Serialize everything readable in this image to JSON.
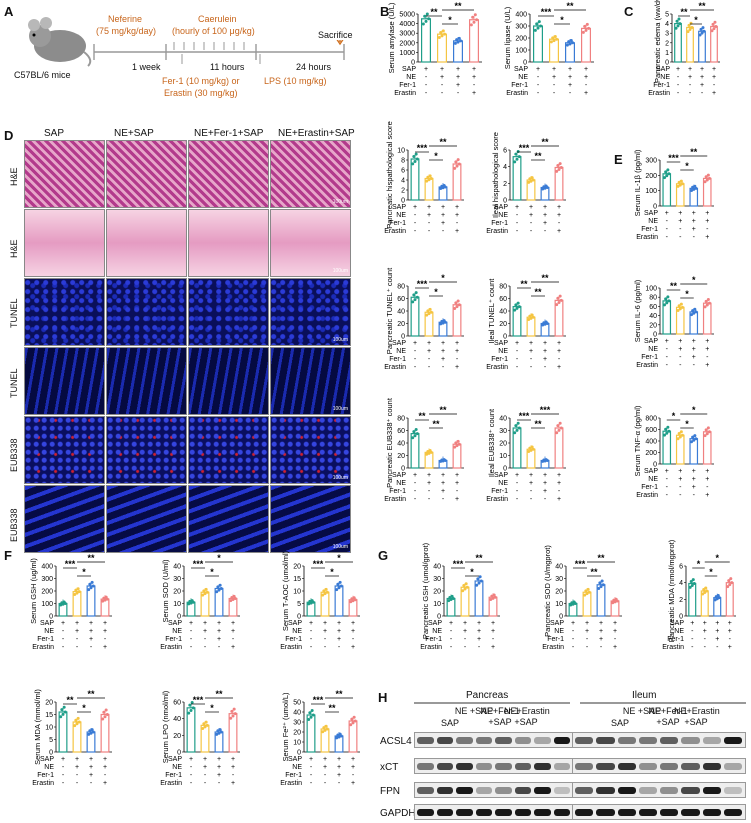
{
  "panels": {
    "A": {
      "letter": "A",
      "mouse_label": "C57BL/6 mice",
      "step1_top": "Neferine",
      "step1_dose": "(75 mg/kg/day)",
      "step1_dur": "1 week",
      "step2_top": "Caerulein",
      "step2_dose": "(hourly of 100 μg/kg)",
      "step2_dur": "11 hours",
      "step2_bot1": "Fer-1 (10 mg/kg) or",
      "step2_bot2": "Erastin (30 mg/kg)",
      "step3_dur": "24 hours",
      "step3_bot": "LPS (10 mg/kg)",
      "sacrifice": "Sacrifice"
    },
    "B": {
      "letter": "B"
    },
    "C": {
      "letter": "C"
    },
    "D": {
      "letter": "D"
    },
    "E": {
      "letter": "E"
    },
    "F": {
      "letter": "F"
    },
    "G": {
      "letter": "G"
    },
    "H": {
      "letter": "H"
    }
  },
  "design_rows": [
    "SAP",
    "NE",
    "Fer-1",
    "Erastin"
  ],
  "design_signs": [
    [
      "+",
      "+",
      "+",
      "+"
    ],
    [
      "-",
      "+",
      "+",
      "+"
    ],
    [
      "-",
      "-",
      "+",
      "-"
    ],
    [
      "-",
      "-",
      "-",
      "+"
    ]
  ],
  "group_colors": [
    "#1f9e89",
    "#f5c542",
    "#3a7bd5",
    "#f08080"
  ],
  "micro_columns": [
    "SAP",
    "NE+SAP",
    "NE+Fer-1+SAP",
    "NE+Erastin+SAP"
  ],
  "micro_rows": [
    "H&E",
    "H&E",
    "TUNEL",
    "TUNEL",
    "EUB338",
    "EUB338"
  ],
  "scale_bar": "100um",
  "blot": {
    "tissues": [
      "Pancreas",
      "Ileum"
    ],
    "groups": [
      "SAP",
      "NE +SAP",
      "NE+Fer-1 +SAP",
      "NE+Erastin +SAP"
    ],
    "proteins": [
      "ACSL4",
      "xCT",
      "FPN",
      "GAPDH"
    ]
  },
  "chart_data": [
    {
      "id": "B1",
      "type": "bar",
      "ylabel": "Serum amylase (U/L)",
      "ylim": [
        0,
        5000
      ],
      "ticks": [
        0,
        1000,
        2000,
        3000,
        4000,
        5000
      ],
      "values": [
        4500,
        2900,
        2200,
        4400
      ],
      "sig": [
        [
          0,
          1,
          "**"
        ],
        [
          1,
          2,
          "*"
        ],
        [
          1,
          3,
          "**"
        ]
      ]
    },
    {
      "id": "B2",
      "type": "bar",
      "ylabel": "Serum lipase (U/L)",
      "ylim": [
        0,
        400
      ],
      "ticks": [
        0,
        100,
        200,
        300,
        400
      ],
      "values": [
        300,
        190,
        160,
        280
      ],
      "sig": [
        [
          0,
          1,
          "***"
        ],
        [
          1,
          2,
          "*"
        ],
        [
          1,
          3,
          "**"
        ]
      ]
    },
    {
      "id": "C1",
      "type": "bar",
      "ylabel": "Pancreatic edema (ww/dw)",
      "ylim": [
        0,
        5
      ],
      "ticks": [
        0,
        1,
        2,
        3,
        4,
        5
      ],
      "values": [
        4.0,
        3.6,
        3.2,
        3.7
      ],
      "sig": [
        [
          0,
          1,
          "**"
        ],
        [
          1,
          2,
          "*"
        ],
        [
          1,
          3,
          "**"
        ]
      ]
    },
    {
      "id": "D1",
      "type": "bar",
      "ylabel": "Pancreatic hispathological score",
      "ylim": [
        0,
        10
      ],
      "ticks": [
        0,
        2,
        4,
        6,
        8,
        10
      ],
      "values": [
        8.2,
        4.3,
        2.6,
        7.2
      ],
      "sig": [
        [
          0,
          1,
          "***"
        ],
        [
          1,
          2,
          "*"
        ],
        [
          1,
          3,
          "**"
        ]
      ]
    },
    {
      "id": "D2",
      "type": "bar",
      "ylabel": "Ileal hispathological score",
      "ylim": [
        0,
        6
      ],
      "ticks": [
        0,
        2,
        4,
        6
      ],
      "values": [
        5.2,
        2.4,
        1.5,
        3.9
      ],
      "sig": [
        [
          0,
          1,
          "***"
        ],
        [
          1,
          2,
          "**"
        ],
        [
          1,
          3,
          "**"
        ]
      ]
    },
    {
      "id": "D3",
      "type": "bar",
      "ylabel": "Pancreatic TUNEL⁺ count",
      "ylim": [
        0,
        80
      ],
      "ticks": [
        0,
        20,
        40,
        60,
        80
      ],
      "values": [
        62,
        38,
        22,
        50
      ],
      "sig": [
        [
          0,
          1,
          "***"
        ],
        [
          1,
          2,
          "*"
        ],
        [
          1,
          3,
          "*"
        ]
      ]
    },
    {
      "id": "D4",
      "type": "bar",
      "ylabel": "Ileal TUNEL⁺ count",
      "ylim": [
        0,
        80
      ],
      "ticks": [
        0,
        20,
        40,
        60,
        80
      ],
      "values": [
        47,
        30,
        20,
        57
      ],
      "sig": [
        [
          0,
          1,
          "**"
        ],
        [
          1,
          2,
          "**"
        ],
        [
          1,
          3,
          "**"
        ]
      ]
    },
    {
      "id": "D5",
      "type": "bar",
      "ylabel": "Pancreatic EUB338⁺ count",
      "ylim": [
        0,
        80
      ],
      "ticks": [
        0,
        20,
        40,
        60,
        80
      ],
      "values": [
        55,
        25,
        12,
        38
      ],
      "sig": [
        [
          0,
          1,
          "**"
        ],
        [
          1,
          2,
          "**"
        ],
        [
          1,
          3,
          "**"
        ]
      ]
    },
    {
      "id": "D6",
      "type": "bar",
      "ylabel": "Ileal EUB338⁺ count",
      "ylim": [
        0,
        40
      ],
      "ticks": [
        0,
        10,
        20,
        30,
        40
      ],
      "values": [
        32,
        15,
        6,
        32
      ],
      "sig": [
        [
          0,
          1,
          "***"
        ],
        [
          1,
          2,
          "**"
        ],
        [
          1,
          3,
          "***"
        ]
      ]
    },
    {
      "id": "E1",
      "type": "bar",
      "ylabel": "Serum IL-1β (pg/ml)",
      "ylim": [
        0,
        300
      ],
      "ticks": [
        0,
        100,
        200,
        300
      ],
      "values": [
        210,
        145,
        115,
        180
      ],
      "sig": [
        [
          0,
          1,
          "***"
        ],
        [
          1,
          2,
          "*"
        ],
        [
          1,
          3,
          "**"
        ]
      ]
    },
    {
      "id": "E2",
      "type": "bar",
      "ylabel": "Serum IL-6 (pg/ml)",
      "ylim": [
        0,
        100
      ],
      "ticks": [
        0,
        20,
        40,
        60,
        80,
        100
      ],
      "values": [
        72,
        58,
        48,
        67
      ],
      "sig": [
        [
          0,
          1,
          "**"
        ],
        [
          1,
          2,
          "*"
        ],
        [
          1,
          3,
          "*"
        ]
      ]
    },
    {
      "id": "E3",
      "type": "bar",
      "ylabel": "Serum TNF-α (pg/ml)",
      "ylim": [
        0,
        800
      ],
      "ticks": [
        0,
        200,
        400,
        600,
        800
      ],
      "values": [
        570,
        500,
        440,
        560
      ],
      "sig": [
        [
          0,
          1,
          "*"
        ],
        [
          1,
          2,
          "*"
        ],
        [
          1,
          3,
          "*"
        ]
      ]
    },
    {
      "id": "F1",
      "type": "bar",
      "ylabel": "Serum GSH (ug/ml)",
      "ylim": [
        0,
        400
      ],
      "ticks": [
        0,
        100,
        200,
        300,
        400
      ],
      "values": [
        100,
        195,
        240,
        135
      ],
      "sig": [
        [
          0,
          1,
          "***"
        ],
        [
          1,
          2,
          "*"
        ],
        [
          1,
          3,
          "**"
        ]
      ]
    },
    {
      "id": "F2",
      "type": "bar",
      "ylabel": "Serum SOD (U/ml)",
      "ylim": [
        0,
        40
      ],
      "ticks": [
        0,
        10,
        20,
        30,
        40
      ],
      "values": [
        11,
        19,
        22,
        14
      ],
      "sig": [
        [
          0,
          1,
          "***"
        ],
        [
          1,
          2,
          "*"
        ],
        [
          1,
          3,
          "*"
        ]
      ]
    },
    {
      "id": "F3",
      "type": "bar",
      "ylabel": "Serum T-AOC (umol/ml)",
      "ylim": [
        0,
        20
      ],
      "ticks": [
        0,
        5,
        10,
        15,
        20
      ],
      "values": [
        5.5,
        9.5,
        12,
        6.5
      ],
      "sig": [
        [
          0,
          1,
          "***"
        ],
        [
          1,
          2,
          "*"
        ],
        [
          1,
          3,
          "*"
        ]
      ]
    },
    {
      "id": "G1",
      "type": "bar",
      "ylabel": "Pancreatic GSH (umol/gprot)",
      "ylim": [
        0,
        40
      ],
      "ticks": [
        0,
        10,
        20,
        30,
        40
      ],
      "values": [
        14,
        23,
        28,
        15
      ],
      "sig": [
        [
          0,
          1,
          "***"
        ],
        [
          1,
          2,
          "*"
        ],
        [
          1,
          3,
          "**"
        ]
      ]
    },
    {
      "id": "G2",
      "type": "bar",
      "ylabel": "Pancreatic SOD (U/mgprot)",
      "ylim": [
        0,
        40
      ],
      "ticks": [
        0,
        10,
        20,
        30,
        40
      ],
      "values": [
        10,
        19,
        25,
        12
      ],
      "sig": [
        [
          0,
          1,
          "***"
        ],
        [
          1,
          2,
          "**"
        ],
        [
          1,
          3,
          "**"
        ]
      ]
    },
    {
      "id": "G3",
      "type": "bar",
      "ylabel": "Pancreatic MDA (nmol/mgprot)",
      "ylim": [
        0,
        6
      ],
      "ticks": [
        0,
        2,
        4,
        6
      ],
      "values": [
        3.9,
        3.0,
        2.2,
        4.0
      ],
      "sig": [
        [
          0,
          1,
          "*"
        ],
        [
          1,
          2,
          "*"
        ],
        [
          1,
          3,
          "*"
        ]
      ]
    },
    {
      "id": "F4",
      "type": "bar",
      "ylabel": "Serum MDA (mmol/ml)",
      "ylim": [
        0,
        20
      ],
      "ticks": [
        0,
        5,
        10,
        15,
        20
      ],
      "values": [
        16,
        12,
        8,
        15
      ],
      "sig": [
        [
          0,
          1,
          "**"
        ],
        [
          1,
          2,
          "*"
        ],
        [
          1,
          3,
          "**"
        ]
      ]
    },
    {
      "id": "F5",
      "type": "bar",
      "ylabel": "Serum LPO (nmol/ml)",
      "ylim": [
        0,
        60
      ],
      "ticks": [
        0,
        20,
        40,
        60
      ],
      "values": [
        53,
        32,
        24,
        46
      ],
      "sig": [
        [
          0,
          1,
          "***"
        ],
        [
          1,
          2,
          "*"
        ],
        [
          1,
          3,
          "**"
        ]
      ]
    },
    {
      "id": "F6",
      "type": "bar",
      "ylabel": "Serum Fe²⁺ (umol/L)",
      "ylim": [
        0,
        50
      ],
      "ticks": [
        0,
        10,
        20,
        30,
        40,
        50
      ],
      "values": [
        37,
        23,
        16,
        31
      ],
      "sig": [
        [
          0,
          1,
          "***"
        ],
        [
          1,
          2,
          "**"
        ],
        [
          1,
          3,
          "**"
        ]
      ]
    }
  ]
}
